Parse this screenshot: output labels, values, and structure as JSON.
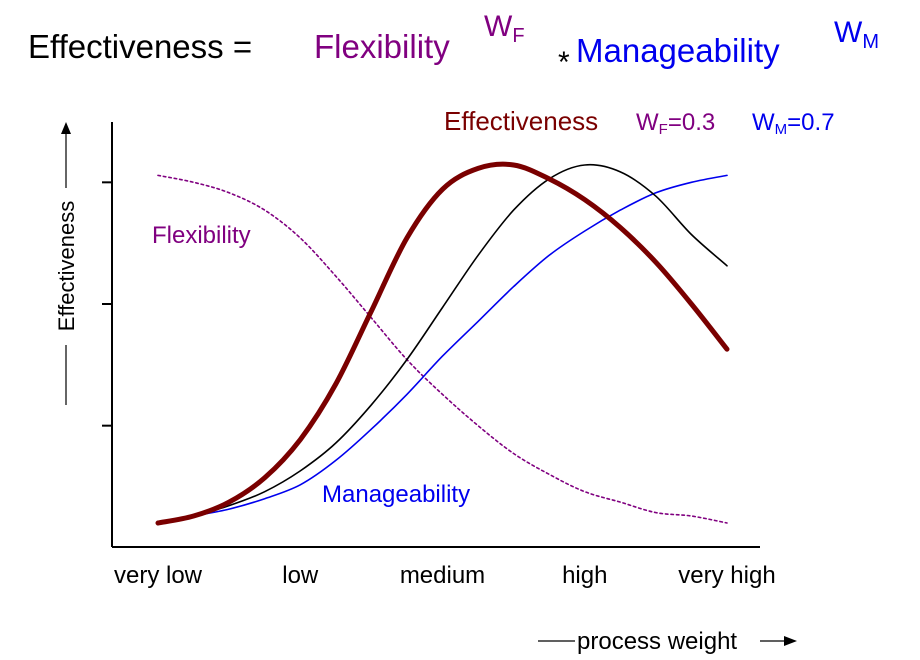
{
  "colors": {
    "flexibility": "#800080",
    "manageability": "#0000ee",
    "effectiveness_bold": "#7a0000",
    "effectiveness_thin": "#000000",
    "axis": "#000000"
  },
  "formula": {
    "lhs": "Effectiveness =",
    "term1": "Flexibility",
    "exp1_main": "W",
    "exp1_sub": "F",
    "operator": "*",
    "term2": "Manageability",
    "exp2_main": "W",
    "exp2_sub": "M"
  },
  "legend": {
    "label": "Effectiveness",
    "wf_main": "W",
    "wf_sub": "F",
    "wf_value": "=0.3",
    "wm_main": "W",
    "wm_sub": "M",
    "wm_value": "=0.7"
  },
  "chart_data": {
    "type": "line",
    "categories": [
      "very low",
      "low",
      "medium",
      "high",
      "very high"
    ],
    "xlabel": "process weight",
    "ylabel": "Effectiveness",
    "x": [
      0,
      0.25,
      0.5,
      0.75,
      1,
      1.25,
      1.5,
      1.75,
      2,
      2.25,
      2.5,
      2.75,
      3,
      3.25,
      3.5,
      3.75,
      4
    ],
    "xlim": [
      0,
      4
    ],
    "ylim": [
      0,
      1.05
    ],
    "y_ticks": [
      0.28,
      0.63,
      0.98
    ],
    "grid": false,
    "series": [
      {
        "key": "flexibility",
        "name": "Flexibility",
        "style": "dotted",
        "values": [
          1.0,
          0.98,
          0.95,
          0.9,
          0.82,
          0.71,
          0.59,
          0.47,
          0.37,
          0.28,
          0.2,
          0.14,
          0.09,
          0.06,
          0.03,
          0.02,
          0.0
        ]
      },
      {
        "key": "manageability",
        "name": "Manageability",
        "style": "solid",
        "values": [
          0.0,
          0.02,
          0.04,
          0.07,
          0.11,
          0.18,
          0.27,
          0.37,
          0.48,
          0.58,
          0.68,
          0.77,
          0.84,
          0.9,
          0.95,
          0.98,
          1.0
        ]
      },
      {
        "key": "effectiveness_thin",
        "style": "solid",
        "values": [
          0.0,
          0.02,
          0.05,
          0.09,
          0.15,
          0.23,
          0.34,
          0.47,
          0.62,
          0.77,
          0.9,
          0.99,
          1.03,
          1.01,
          0.94,
          0.83,
          0.74
        ]
      },
      {
        "key": "effectiveness_bold",
        "name": "Effectiveness",
        "style": "bold",
        "values": [
          0.0,
          0.02,
          0.06,
          0.13,
          0.24,
          0.4,
          0.61,
          0.82,
          0.96,
          1.02,
          1.03,
          0.99,
          0.93,
          0.85,
          0.75,
          0.63,
          0.5
        ]
      }
    ],
    "annotations": [
      {
        "key": "flexibility",
        "text": "Flexibility"
      },
      {
        "key": "manageability",
        "text": "Manageability"
      }
    ]
  }
}
